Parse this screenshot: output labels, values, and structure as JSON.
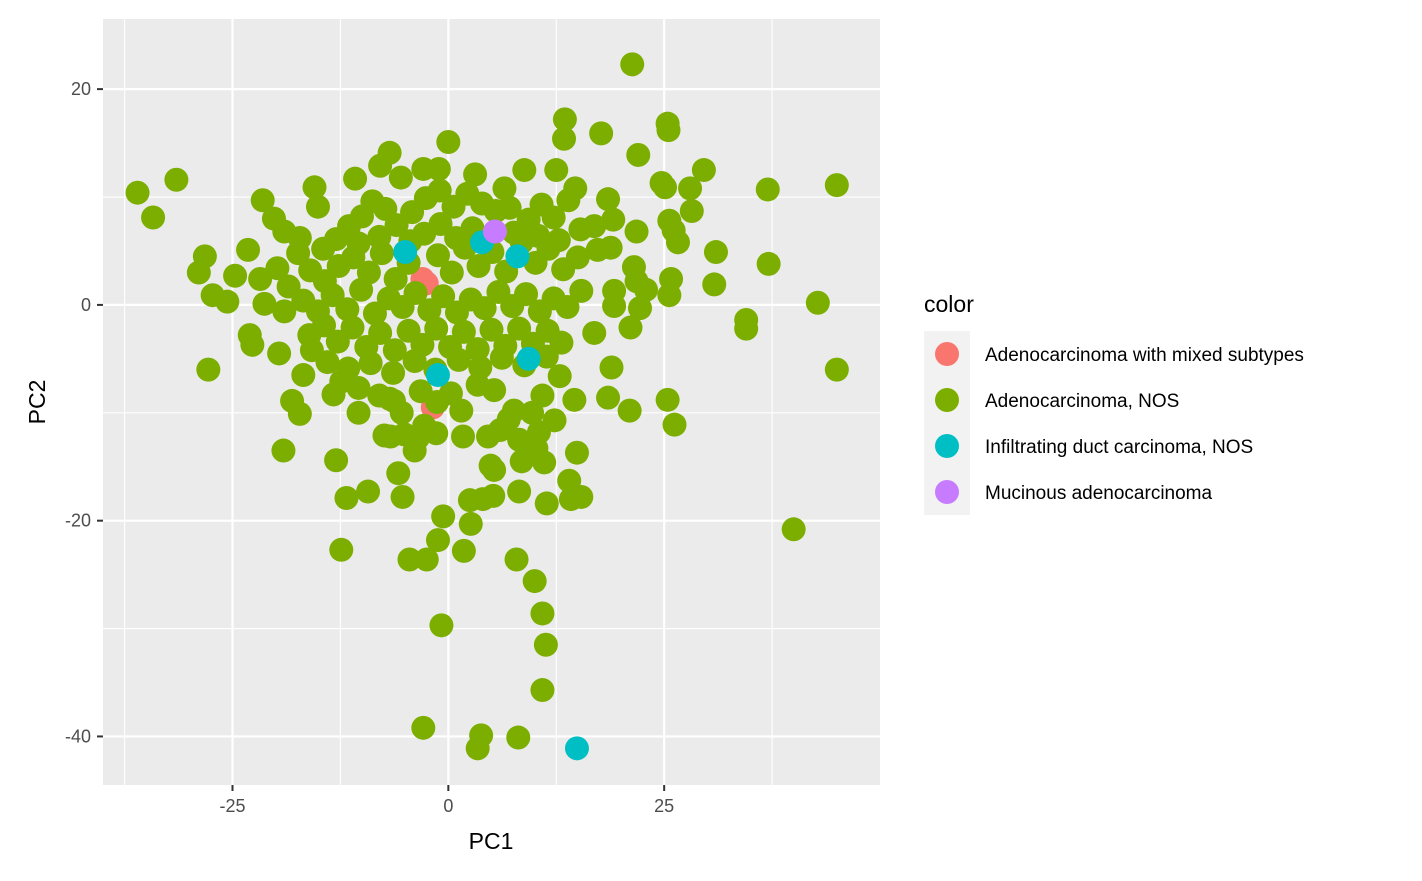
{
  "chart_data": {
    "type": "scatter",
    "xlabel": "PC1",
    "ylabel": "PC2",
    "xlim": [
      -40,
      50
    ],
    "ylim": [
      -44.5,
      26.5
    ],
    "x_ticks": [
      -25,
      0,
      25
    ],
    "x_tick_labels": [
      "-25",
      "0",
      "25"
    ],
    "y_ticks": [
      -40,
      -20,
      0,
      20
    ],
    "y_tick_labels": [
      "-40",
      "-20",
      "0",
      "20"
    ],
    "grid": true,
    "legend": {
      "title": "color",
      "position": "right"
    },
    "series": [
      {
        "name": "Adenocarcinoma with mixed subtypes",
        "color": "#F8766D",
        "points": [
          [
            -3.0,
            2.4
          ],
          [
            -2.5,
            2.0
          ],
          [
            -1.8,
            -9.5
          ]
        ]
      },
      {
        "name": "Adenocarcinoma, NOS",
        "color": "#7CAE00",
        "points": [
          [
            21.3,
            22.3
          ],
          [
            13.5,
            17.2
          ],
          [
            25.4,
            16.8
          ],
          [
            25.5,
            16.2
          ],
          [
            13.4,
            15.4
          ],
          [
            17.7,
            15.9
          ],
          [
            0.0,
            15.1
          ],
          [
            22.0,
            13.9
          ],
          [
            -6.8,
            14.1
          ],
          [
            29.6,
            12.5
          ],
          [
            8.8,
            12.5
          ],
          [
            12.5,
            12.5
          ],
          [
            -7.9,
            12.9
          ],
          [
            -2.9,
            12.6
          ],
          [
            -1.1,
            12.6
          ],
          [
            3.1,
            12.1
          ],
          [
            24.7,
            11.3
          ],
          [
            25.1,
            10.9
          ],
          [
            28.0,
            10.8
          ],
          [
            37.0,
            10.7
          ],
          [
            45.0,
            11.1
          ],
          [
            -36.0,
            10.4
          ],
          [
            -31.5,
            11.6
          ],
          [
            -34.2,
            8.1
          ],
          [
            -15.5,
            10.9
          ],
          [
            -10.8,
            11.7
          ],
          [
            -5.5,
            11.8
          ],
          [
            14.7,
            10.8
          ],
          [
            6.5,
            10.8
          ],
          [
            18.5,
            9.8
          ],
          [
            -21.5,
            9.7
          ],
          [
            -15.1,
            9.1
          ],
          [
            28.2,
            8.7
          ],
          [
            19.1,
            7.9
          ],
          [
            -20.2,
            8.0
          ],
          [
            -19.0,
            6.8
          ],
          [
            21.8,
            6.8
          ],
          [
            25.6,
            7.8
          ],
          [
            26.1,
            6.9
          ],
          [
            26.6,
            5.8
          ],
          [
            16.9,
            7.3
          ],
          [
            31.0,
            4.9
          ],
          [
            17.3,
            5.1
          ],
          [
            18.8,
            5.3
          ],
          [
            -23.2,
            5.1
          ],
          [
            -28.2,
            4.5
          ],
          [
            21.5,
            3.5
          ],
          [
            25.8,
            2.4
          ],
          [
            21.8,
            2.2
          ],
          [
            30.8,
            1.9
          ],
          [
            37.1,
            3.8
          ],
          [
            42.8,
            0.2
          ],
          [
            45.0,
            -6.0
          ],
          [
            -28.9,
            3.0
          ],
          [
            -24.7,
            2.7
          ],
          [
            -27.3,
            0.9
          ],
          [
            -25.6,
            0.3
          ],
          [
            -21.3,
            0.1
          ],
          [
            -19.0,
            -0.6
          ],
          [
            19.2,
            1.3
          ],
          [
            22.9,
            1.4
          ],
          [
            25.6,
            0.9
          ],
          [
            19.2,
            -0.1
          ],
          [
            22.2,
            -0.3
          ],
          [
            34.5,
            -1.4
          ],
          [
            34.5,
            -2.2
          ],
          [
            21.1,
            -2.1
          ],
          [
            16.9,
            -2.6
          ],
          [
            -23.0,
            -2.8
          ],
          [
            -22.7,
            -3.7
          ],
          [
            -19.6,
            -4.5
          ],
          [
            -15.8,
            -4.2
          ],
          [
            -27.8,
            -6.0
          ],
          [
            -16.8,
            -6.5
          ],
          [
            -12.4,
            -7.1
          ],
          [
            -13.3,
            -8.3
          ],
          [
            -10.4,
            -7.7
          ],
          [
            -18.1,
            -8.9
          ],
          [
            -17.2,
            -10.1
          ],
          [
            -10.4,
            -10.0
          ],
          [
            -8.0,
            -8.4
          ],
          [
            -6.8,
            -8.7
          ],
          [
            -6.3,
            -8.9
          ],
          [
            -5.4,
            -10.0
          ],
          [
            -3.2,
            -8.0
          ],
          [
            -1.3,
            -9.0
          ],
          [
            0.3,
            -8.2
          ],
          [
            3.4,
            -7.4
          ],
          [
            5.3,
            -7.9
          ],
          [
            7.0,
            -10.6
          ],
          [
            7.6,
            -9.8
          ],
          [
            10.9,
            -8.4
          ],
          [
            14.6,
            -8.8
          ],
          [
            18.9,
            -5.8
          ],
          [
            18.5,
            -8.6
          ],
          [
            21.0,
            -9.8
          ],
          [
            25.4,
            -8.8
          ],
          [
            26.2,
            -11.1
          ],
          [
            -7.4,
            -12.1
          ],
          [
            -6.7,
            -12.2
          ],
          [
            -5.1,
            -12.0
          ],
          [
            -3.5,
            -12.3
          ],
          [
            -2.8,
            -11.2
          ],
          [
            -1.4,
            -11.9
          ],
          [
            1.5,
            -9.8
          ],
          [
            1.7,
            -12.2
          ],
          [
            4.6,
            -12.2
          ],
          [
            6.0,
            -11.6
          ],
          [
            8.2,
            -12.5
          ],
          [
            9.7,
            -10.0
          ],
          [
            10.5,
            -11.8
          ],
          [
            10.2,
            -13.3
          ],
          [
            12.3,
            -10.7
          ],
          [
            14.9,
            -13.7
          ],
          [
            -19.1,
            -13.5
          ],
          [
            -13.0,
            -14.4
          ],
          [
            -3.9,
            -13.5
          ],
          [
            4.9,
            -14.9
          ],
          [
            5.3,
            -15.3
          ],
          [
            8.5,
            -14.5
          ],
          [
            11.1,
            -14.6
          ],
          [
            -5.8,
            -15.6
          ],
          [
            14.0,
            -16.3
          ],
          [
            -11.8,
            -17.9
          ],
          [
            -9.3,
            -17.3
          ],
          [
            -5.3,
            -17.8
          ],
          [
            2.5,
            -18.1
          ],
          [
            4.0,
            -18.0
          ],
          [
            5.2,
            -17.7
          ],
          [
            8.2,
            -17.3
          ],
          [
            11.4,
            -18.4
          ],
          [
            14.2,
            -18.0
          ],
          [
            15.4,
            -17.8
          ],
          [
            40.0,
            -20.8
          ],
          [
            -0.6,
            -19.6
          ],
          [
            2.6,
            -20.3
          ],
          [
            -1.2,
            -21.8
          ],
          [
            1.8,
            -22.8
          ],
          [
            -12.4,
            -22.7
          ],
          [
            -4.5,
            -23.6
          ],
          [
            -2.5,
            -23.6
          ],
          [
            7.9,
            -23.6
          ],
          [
            10.0,
            -25.6
          ],
          [
            10.9,
            -28.6
          ],
          [
            -0.8,
            -29.7
          ],
          [
            11.3,
            -31.5
          ],
          [
            10.9,
            -35.7
          ],
          [
            -2.9,
            -39.2
          ],
          [
            3.8,
            -39.9
          ],
          [
            3.4,
            -41.1
          ],
          [
            8.1,
            -40.1
          ],
          [
            -14.5,
            5.2
          ],
          [
            -13.0,
            6.1
          ],
          [
            -11.5,
            7.3
          ],
          [
            -10.0,
            8.2
          ],
          [
            -8.8,
            9.6
          ],
          [
            -7.3,
            8.9
          ],
          [
            -6.0,
            7.4
          ],
          [
            -4.2,
            8.6
          ],
          [
            -2.6,
            9.9
          ],
          [
            -1.0,
            10.6
          ],
          [
            0.6,
            9.1
          ],
          [
            2.2,
            10.3
          ],
          [
            3.9,
            9.4
          ],
          [
            5.5,
            8.7
          ],
          [
            7.1,
            9.0
          ],
          [
            9.3,
            7.9
          ],
          [
            10.8,
            9.3
          ],
          [
            12.2,
            8.1
          ],
          [
            13.9,
            9.7
          ],
          [
            15.3,
            7.0
          ],
          [
            -17.4,
            4.8
          ],
          [
            -16.0,
            3.2
          ],
          [
            -14.3,
            2.2
          ],
          [
            -12.7,
            3.6
          ],
          [
            -11.0,
            4.4
          ],
          [
            -9.2,
            3.0
          ],
          [
            -7.7,
            4.8
          ],
          [
            -6.1,
            2.4
          ],
          [
            -4.6,
            3.9
          ],
          [
            -1.2,
            4.6
          ],
          [
            0.4,
            3.0
          ],
          [
            1.9,
            5.3
          ],
          [
            3.5,
            3.6
          ],
          [
            5.1,
            4.9
          ],
          [
            6.7,
            3.1
          ],
          [
            8.5,
            5.8
          ],
          [
            10.1,
            3.9
          ],
          [
            11.6,
            5.2
          ],
          [
            13.3,
            3.3
          ],
          [
            15.0,
            4.4
          ],
          [
            -18.5,
            1.7
          ],
          [
            -16.8,
            0.4
          ],
          [
            -15.1,
            -0.6
          ],
          [
            -13.4,
            0.9
          ],
          [
            -11.7,
            -0.4
          ],
          [
            -10.1,
            1.4
          ],
          [
            -8.5,
            -0.8
          ],
          [
            -6.9,
            0.6
          ],
          [
            -5.3,
            -0.2
          ],
          [
            -3.8,
            1.1
          ],
          [
            -2.2,
            -0.5
          ],
          [
            -0.6,
            0.8
          ],
          [
            1.0,
            -0.7
          ],
          [
            2.6,
            0.5
          ],
          [
            4.2,
            -0.3
          ],
          [
            5.8,
            1.2
          ],
          [
            7.4,
            -0.1
          ],
          [
            9.0,
            1.0
          ],
          [
            10.6,
            -0.6
          ],
          [
            12.2,
            0.6
          ],
          [
            13.8,
            -0.2
          ],
          [
            15.4,
            1.3
          ],
          [
            -16.1,
            -2.8
          ],
          [
            -14.4,
            -1.9
          ],
          [
            -12.8,
            -3.4
          ],
          [
            -11.1,
            -2.1
          ],
          [
            -9.5,
            -3.9
          ],
          [
            -7.9,
            -2.6
          ],
          [
            -6.2,
            -4.2
          ],
          [
            -4.6,
            -2.4
          ],
          [
            -3.0,
            -3.7
          ],
          [
            -1.4,
            -2.2
          ],
          [
            0.2,
            -3.9
          ],
          [
            1.8,
            -2.5
          ],
          [
            3.4,
            -4.1
          ],
          [
            5.0,
            -2.3
          ],
          [
            6.6,
            -3.8
          ],
          [
            8.2,
            -2.2
          ],
          [
            9.8,
            -3.6
          ],
          [
            11.5,
            -2.4
          ],
          [
            13.1,
            -3.5
          ],
          [
            -14.0,
            -5.3
          ],
          [
            -11.6,
            -5.9
          ],
          [
            -9.0,
            -5.4
          ],
          [
            -6.4,
            -6.3
          ],
          [
            -3.9,
            -5.2
          ],
          [
            -1.5,
            -6.0
          ],
          [
            1.2,
            -5.1
          ],
          [
            3.7,
            -5.8
          ],
          [
            6.2,
            -4.9
          ],
          [
            8.8,
            -5.6
          ],
          [
            11.4,
            -4.8
          ],
          [
            12.9,
            -6.6
          ],
          [
            -4.4,
            5.9
          ],
          [
            -2.8,
            6.6
          ],
          [
            -0.9,
            7.5
          ],
          [
            0.9,
            6.2
          ],
          [
            2.8,
            7.1
          ],
          [
            -8.0,
            6.3
          ],
          [
            -10.4,
            5.7
          ],
          [
            7.6,
            6.7
          ],
          [
            10.4,
            6.4
          ],
          [
            12.8,
            6.0
          ],
          [
            -19.8,
            3.4
          ],
          [
            -21.8,
            2.4
          ],
          [
            -17.2,
            6.2
          ]
        ]
      },
      {
        "name": "Infiltrating duct carcinoma, NOS",
        "color": "#00BFC4",
        "points": [
          [
            8.0,
            4.5
          ],
          [
            3.9,
            5.8
          ],
          [
            -5.0,
            4.9
          ],
          [
            9.3,
            -5.0
          ],
          [
            -1.2,
            -6.5
          ],
          [
            14.9,
            -41.1
          ]
        ]
      },
      {
        "name": "Mucinous adenocarcinoma",
        "color": "#C77CFF",
        "points": [
          [
            5.4,
            6.8
          ]
        ]
      }
    ]
  }
}
